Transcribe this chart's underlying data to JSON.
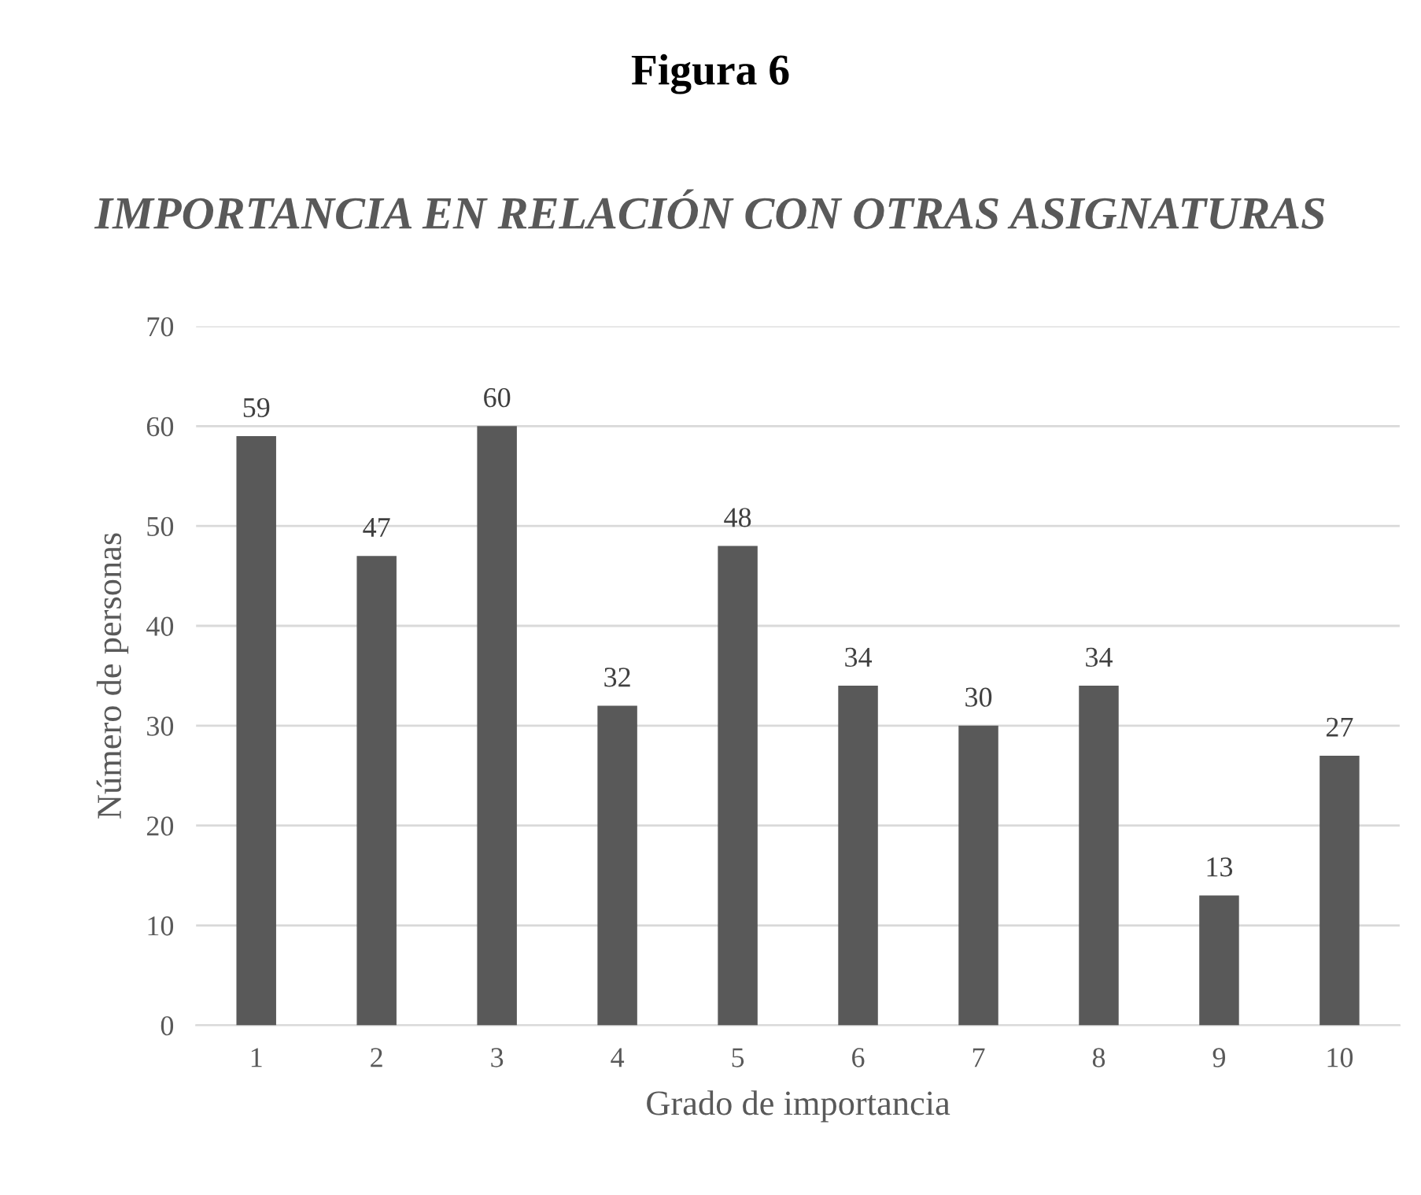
{
  "chart_data": {
    "type": "bar",
    "title": "Figura 6",
    "subtitle": "IMPORTANCIA EN RELACIÓN CON OTRAS ASIGNATURAS",
    "xlabel": "Grado de importancia",
    "ylabel": "Número de personas",
    "categories": [
      "1",
      "2",
      "3",
      "4",
      "5",
      "6",
      "7",
      "8",
      "9",
      "10"
    ],
    "values": [
      59,
      47,
      60,
      32,
      48,
      34,
      30,
      34,
      13,
      27
    ],
    "color": "#595959",
    "ylim": [
      0,
      70
    ],
    "yticks": [
      0,
      10,
      20,
      30,
      40,
      50,
      60,
      70
    ],
    "grid": "y",
    "data_labels": true
  }
}
